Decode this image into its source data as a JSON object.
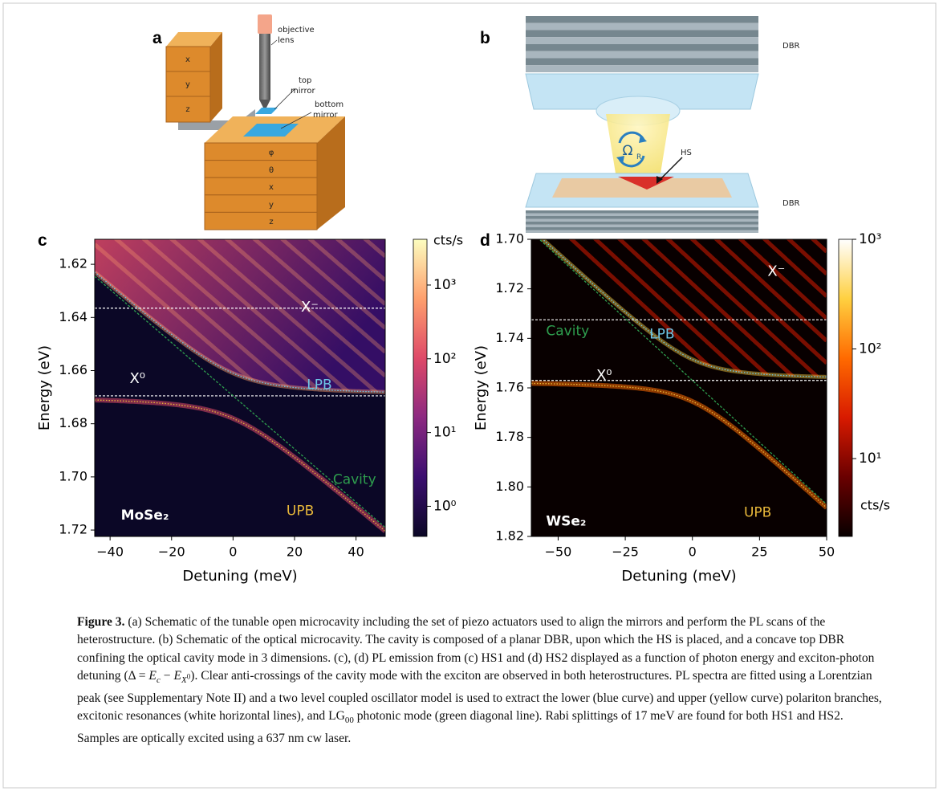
{
  "figure": {
    "schematic_a": {
      "panel_label": "a",
      "stage_upper": [
        "x",
        "y",
        "z"
      ],
      "stage_lower": [
        "φ",
        "θ",
        "x",
        "y",
        "z"
      ],
      "objective": [
        "objective",
        "lens"
      ],
      "top_mirror": [
        "top",
        "mirror"
      ],
      "bottom_mirror": [
        "bottom",
        "mirror"
      ]
    },
    "schematic_b": {
      "panel_label": "b",
      "top_label": "DBR",
      "bottom_label": "DBR",
      "hs_label": "HS",
      "rabi_symbol": "Ω",
      "rabi_subscript": "R"
    },
    "caption": {
      "runs": [
        "Figure 3.",
        " (a) Schematic of the tunable open microcavity including the set of piezo actuators used to align the mirrors and perform the PL scans of the heterostructure. (b) Schematic of the optical microcavity. The cavity is composed of a planar DBR, upon which the HS is placed, and a concave top DBR confining the optical cavity mode in 3 dimensions. (c), (d) PL emission from (c) HS1 and (d) HS2 displayed as a function of photon energy and exciton-photon detuning (Δ = ",
        "E",
        "c",
        " − ",
        "E",
        "X",
        "0",
        "). Clear anti-crossings of the cavity mode with the exciton are observed in both heterostructures. PL spectra are fitted using a Lorentzian peak (see Supplementary Note II) and a two level coupled oscillator model is used to extract the lower (blue curve) and upper (yellow curve) polariton branches, excitonic resonances (white horizontal lines), and LG",
        "00",
        " photonic mode (green diagonal line). Rabi splittings of 17 meV are found for both HS1 and HS2. Samples are optically excited using a 637 nm cw laser."
      ]
    }
  },
  "chart_data": [
    {
      "type": "heatmap",
      "panel_label": "c",
      "xlabel": "Detuning (meV)",
      "ylabel": "Energy (eV)",
      "xlim": [
        -45,
        49.5
      ],
      "xticks": [
        {
          "value": -40,
          "label": "−40"
        },
        {
          "value": -20,
          "label": "−20"
        },
        0,
        20,
        40
      ],
      "ylim": [
        1.7224,
        1.6106
      ],
      "yticks": [
        1.62,
        1.64,
        1.66,
        1.68,
        {
          "value": 1.7,
          "label": "1.70"
        },
        1.72
      ],
      "material": "MoSe₂",
      "excitons": [
        {
          "label": "X⁻",
          "energy": 1.6365
        },
        {
          "label": "X⁰",
          "energy": 1.6695
        }
      ],
      "rabi_splitting": 17,
      "lines": [
        {
          "name": "LPB",
          "color": "#6ec6e6"
        },
        {
          "name": "UPB",
          "color": "#e8b83a"
        },
        {
          "name": "Cavity",
          "color": "#2e9e4e"
        }
      ],
      "colorbar": {
        "label": "cts/s",
        "scale": "log",
        "lim": [
          0.39,
          4170
        ],
        "ticks": [
          {
            "value": 1,
            "label": "10⁰"
          },
          {
            "value": 10,
            "label": "10¹"
          },
          {
            "value": 100,
            "label": "10²"
          },
          {
            "value": 1000,
            "label": "10³"
          }
        ],
        "colormap": [
          "#0b0726",
          "#3b0f70",
          "#8c2981",
          "#de4968",
          "#fe9f6d",
          "#fcfdbf"
        ]
      }
    },
    {
      "type": "heatmap",
      "panel_label": "d",
      "xlabel": "Detuning (meV)",
      "ylabel": "Energy (eV)",
      "xlim": [
        -60,
        50
      ],
      "xticks": [
        {
          "value": -50,
          "label": "−50"
        },
        {
          "value": -25,
          "label": "−25"
        },
        0,
        25,
        50
      ],
      "ylim": [
        1.82,
        1.7
      ],
      "yticks": [
        {
          "value": 1.7,
          "label": "1.70"
        },
        1.72,
        1.74,
        1.76,
        1.78,
        {
          "value": 1.8,
          "label": "1.80"
        },
        1.82
      ],
      "material": "WSe₂",
      "excitons": [
        {
          "label": "X⁻",
          "energy": 1.7325
        },
        {
          "label": "X⁰",
          "energy": 1.757
        }
      ],
      "rabi_splitting": 17,
      "lines": [
        {
          "name": "LPB",
          "color": "#6ec6e6"
        },
        {
          "name": "UPB",
          "color": "#e8b83a"
        },
        {
          "name": "Cavity",
          "color": "#2e9e4e"
        }
      ],
      "colorbar": {
        "label": "cts/s",
        "scale": "log",
        "lim": [
          1.95,
          1000
        ],
        "ticks": [
          {
            "value": 10,
            "label": "10¹"
          },
          {
            "value": 100,
            "label": "10²"
          },
          {
            "value": 1000,
            "label": "10³"
          }
        ],
        "colormap": [
          "#080000",
          "#6a0000",
          "#d81a00",
          "#ff6a00",
          "#ffd040",
          "#ffffff"
        ]
      }
    }
  ]
}
